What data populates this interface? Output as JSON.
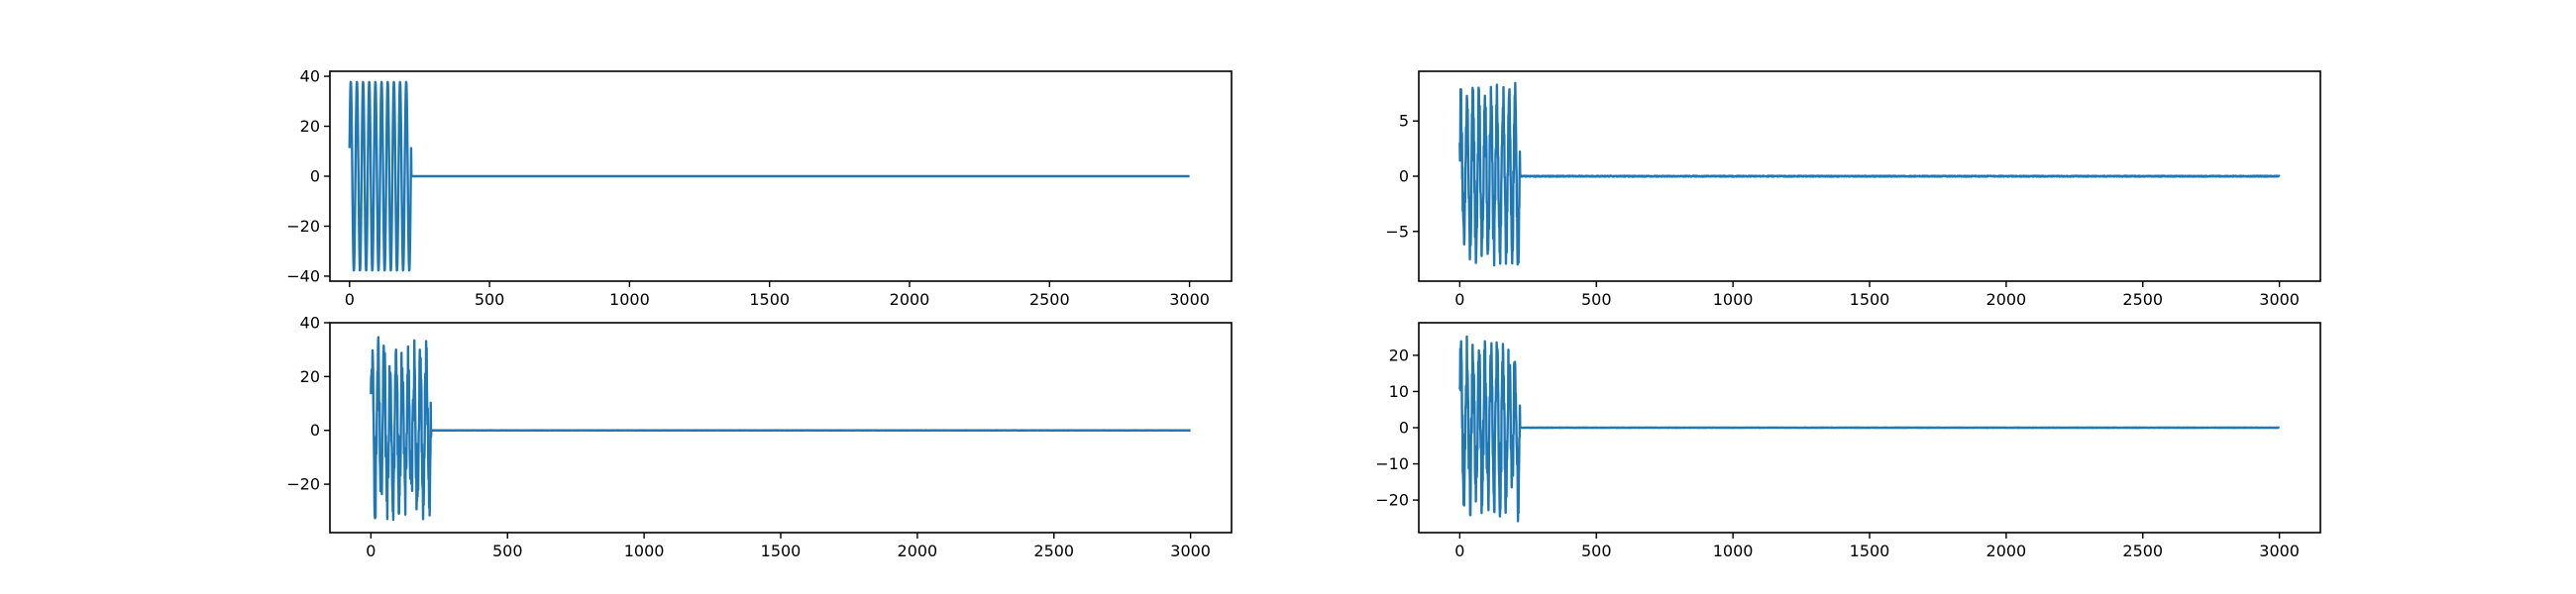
{
  "figure": {
    "background": "#ffffff",
    "line_color": "#1f77b4"
  },
  "chart_data": [
    {
      "type": "line",
      "position": "top-left",
      "title": "",
      "xlabel": "",
      "ylabel": "",
      "xlim": [
        -70,
        3150
      ],
      "ylim": [
        -42,
        42
      ],
      "xticks": [
        0,
        500,
        1000,
        1500,
        2000,
        2500,
        3000
      ],
      "yticks": [
        -40,
        -20,
        0,
        20,
        40
      ],
      "series": [
        {
          "n_points": 3000,
          "burst_end": 220,
          "amplitude": 38,
          "cycles_in_burst": 10,
          "noise_amplitude": 0,
          "after_burst_value": 0
        }
      ]
    },
    {
      "type": "line",
      "position": "top-right",
      "title": "",
      "xlabel": "",
      "ylabel": "",
      "xlim": [
        -150,
        3150
      ],
      "ylim": [
        -9.5,
        9.5
      ],
      "xticks": [
        0,
        500,
        1000,
        1500,
        2000,
        2500,
        3000
      ],
      "yticks": [
        -5,
        0,
        5
      ],
      "series": [
        {
          "n_points": 3000,
          "burst_end": 220,
          "amplitude": 6.5,
          "cycles_in_burst": 10,
          "noise_amplitude": 2.2,
          "after_burst_value": 0
        }
      ]
    },
    {
      "type": "line",
      "position": "bottom-left",
      "title": "",
      "xlabel": "",
      "ylabel": "",
      "xlim": [
        -150,
        3150
      ],
      "ylim": [
        -38,
        40
      ],
      "xticks": [
        0,
        500,
        1000,
        1500,
        2000,
        2500,
        3000
      ],
      "yticks": [
        -20,
        0,
        20,
        40
      ],
      "series": [
        {
          "n_points": 3000,
          "burst_end": 220,
          "amplitude": 24,
          "cycles_in_burst": 10,
          "noise_amplitude": 11,
          "after_burst_value": 0
        }
      ]
    },
    {
      "type": "line",
      "position": "bottom-right",
      "title": "",
      "xlabel": "",
      "ylabel": "",
      "xlim": [
        -150,
        3150
      ],
      "ylim": [
        -29,
        29
      ],
      "xticks": [
        0,
        500,
        1000,
        1500,
        2000,
        2500,
        3000
      ],
      "yticks": [
        -20,
        -10,
        0,
        10,
        20
      ],
      "series": [
        {
          "n_points": 3000,
          "burst_end": 220,
          "amplitude": 18,
          "cycles_in_burst": 10,
          "noise_amplitude": 8,
          "after_burst_value": 0
        }
      ]
    }
  ]
}
